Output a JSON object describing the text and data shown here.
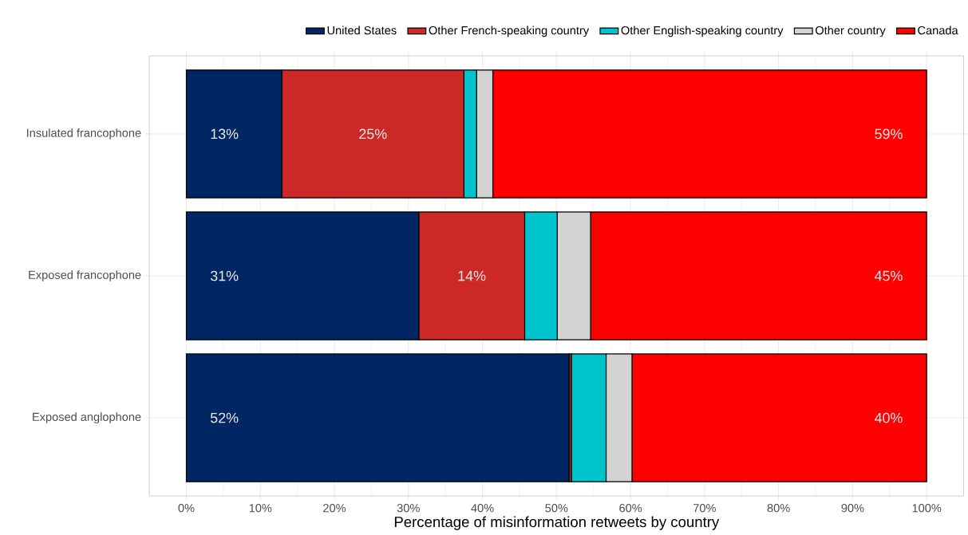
{
  "chart_data": {
    "type": "bar",
    "orientation": "horizontal",
    "stacked": true,
    "xlabel": "Percentage of misinformation retweets by country",
    "categories": [
      "Insulated francophone",
      "Exposed francophone",
      "Exposed anglophone"
    ],
    "series": [
      {
        "name": "United States",
        "color": "#002663",
        "values": [
          12.9,
          31.4,
          51.7
        ],
        "value_labels": [
          "13%",
          "31%",
          "52%"
        ]
      },
      {
        "name": "Other French-speaking country",
        "color": "#cc2828",
        "values": [
          24.6,
          14.3,
          0.3
        ],
        "value_labels": [
          "25%",
          "14%",
          null
        ]
      },
      {
        "name": "Other English-speaking country",
        "color": "#00c4cc",
        "values": [
          1.7,
          4.4,
          4.7
        ],
        "value_labels": [
          null,
          null,
          null
        ]
      },
      {
        "name": "Other country",
        "color": "#d3d3d3",
        "values": [
          2.2,
          4.5,
          3.5
        ],
        "value_labels": [
          null,
          null,
          null
        ]
      },
      {
        "name": "Canada",
        "color": "#ff0000",
        "values": [
          58.6,
          45.4,
          39.8
        ],
        "value_labels": [
          "59%",
          "45%",
          "40%"
        ]
      }
    ],
    "xlim": [
      -5,
      105
    ],
    "xticks": [
      {
        "value": 0,
        "label": "0%"
      },
      {
        "value": 10,
        "label": "10%"
      },
      {
        "value": 20,
        "label": "20%"
      },
      {
        "value": 30,
        "label": "30%"
      },
      {
        "value": 40,
        "label": "40%"
      },
      {
        "value": 50,
        "label": "50%"
      },
      {
        "value": 60,
        "label": "60%"
      },
      {
        "value": 70,
        "label": "70%"
      },
      {
        "value": 80,
        "label": "80%"
      },
      {
        "value": 90,
        "label": "90%"
      },
      {
        "value": 100,
        "label": "100%"
      }
    ],
    "grid": true,
    "legend": "top"
  }
}
